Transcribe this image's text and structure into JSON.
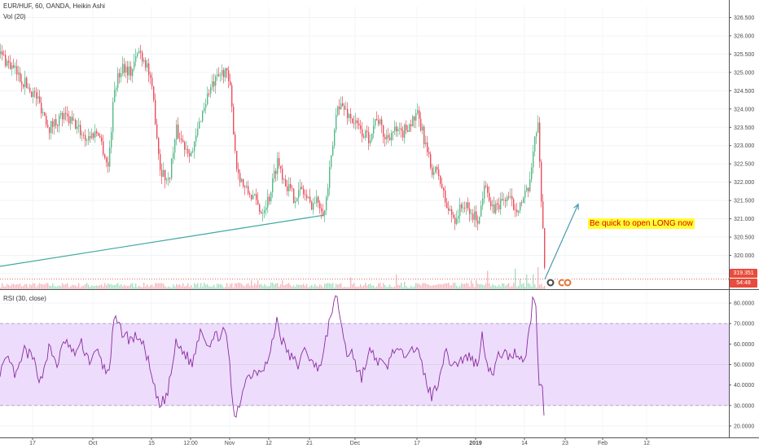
{
  "header": {
    "symbol_line": "EUR/HUF, 60, OANDA, Heikin Ashi",
    "volume_label": "Vol (20)",
    "rsi_label": "RSI (30, close)"
  },
  "annotation": {
    "text": "Be quick to open LONG now"
  },
  "price_badge": {
    "value": "319.351",
    "color": "#e74c3c"
  },
  "time_badge": {
    "value": "54:48",
    "color": "#e74c3c"
  },
  "chart_data": [
    {
      "type": "candlestick",
      "title": "",
      "ylim": [
        319.3,
        326.8
      ],
      "yticks": [
        319.5,
        320.0,
        320.5,
        321.0,
        321.5,
        322.0,
        322.5,
        323.0,
        323.5,
        324.0,
        324.5,
        325.0,
        325.5,
        326.0,
        326.5
      ],
      "ytick_labels": [
        "319.500",
        "320.000",
        "320.500",
        "321.000",
        "321.500",
        "322.000",
        "322.500",
        "323.000",
        "323.500",
        "324.000",
        "324.500",
        "325.000",
        "325.500",
        "326.000",
        "326.500"
      ],
      "xtick_labels": [
        "17",
        "Oct",
        "15",
        "12:00",
        "Nov",
        "12",
        "21",
        "Dec",
        "17",
        "2019",
        "14",
        "23",
        "Feb",
        "12"
      ],
      "up_color": "#53b987",
      "down_color": "#eb4d5c",
      "close_path": [
        [
          0,
          325.5
        ],
        [
          15,
          325.1
        ],
        [
          30,
          324.7
        ],
        [
          45,
          324.3
        ],
        [
          60,
          323.5
        ],
        [
          75,
          323.8
        ],
        [
          90,
          323.6
        ],
        [
          105,
          323.2
        ],
        [
          120,
          323.4
        ],
        [
          132,
          322.4
        ],
        [
          140,
          324.6
        ],
        [
          150,
          325.2
        ],
        [
          160,
          325.0
        ],
        [
          170,
          325.6
        ],
        [
          180,
          325.2
        ],
        [
          188,
          324.2
        ],
        [
          196,
          322.4
        ],
        [
          206,
          322.0
        ],
        [
          216,
          323.4
        ],
        [
          226,
          323.0
        ],
        [
          236,
          322.8
        ],
        [
          246,
          323.8
        ],
        [
          256,
          324.5
        ],
        [
          266,
          324.8
        ],
        [
          276,
          325.1
        ],
        [
          282,
          324.5
        ],
        [
          290,
          322.4
        ],
        [
          300,
          321.8
        ],
        [
          310,
          321.6
        ],
        [
          320,
          321.2
        ],
        [
          330,
          321.6
        ],
        [
          340,
          322.6
        ],
        [
          350,
          322.0
        ],
        [
          360,
          321.6
        ],
        [
          370,
          321.8
        ],
        [
          380,
          321.4
        ],
        [
          390,
          321.5
        ],
        [
          398,
          321.2
        ],
        [
          406,
          322.6
        ],
        [
          414,
          324.2
        ],
        [
          422,
          324.0
        ],
        [
          432,
          323.7
        ],
        [
          442,
          323.4
        ],
        [
          452,
          323.2
        ],
        [
          462,
          323.8
        ],
        [
          472,
          323.2
        ],
        [
          482,
          323.4
        ],
        [
          492,
          323.3
        ],
        [
          502,
          323.6
        ],
        [
          512,
          323.8
        ],
        [
          520,
          323.2
        ],
        [
          528,
          322.4
        ],
        [
          538,
          322.2
        ],
        [
          548,
          321.3
        ],
        [
          558,
          321.0
        ],
        [
          568,
          321.4
        ],
        [
          578,
          321.1
        ],
        [
          588,
          321.0
        ],
        [
          595,
          322.2
        ],
        [
          602,
          321.2
        ],
        [
          612,
          321.4
        ],
        [
          622,
          321.6
        ],
        [
          632,
          321.3
        ],
        [
          642,
          321.5
        ],
        [
          650,
          321.9
        ],
        [
          655,
          323.2
        ],
        [
          660,
          323.6
        ],
        [
          663,
          321.9
        ],
        [
          665,
          321.4
        ],
        [
          667,
          320.1
        ],
        [
          669,
          319.35
        ]
      ],
      "current_price": 319.351,
      "price_line_color": "#e74c3c",
      "trendline": {
        "from": [
          0,
          319.7
        ],
        "to": [
          398,
          321.1
        ],
        "color": "#3fa7a0"
      },
      "arrow": {
        "from": [
          669,
          319.35
        ],
        "to": [
          710,
          321.4
        ],
        "color": "#4a9ab0"
      }
    },
    {
      "type": "bar",
      "title": "",
      "name": "Volume",
      "volume_spikes": [
        [
          287,
          0.9
        ],
        [
          308,
          0.12
        ],
        [
          316,
          0.12
        ],
        [
          346,
          0.12
        ],
        [
          430,
          0.16
        ],
        [
          486,
          0.2
        ],
        [
          496,
          0.1
        ],
        [
          563,
          0.12
        ],
        [
          578,
          0.12
        ],
        [
          584,
          0.12
        ],
        [
          598,
          0.25
        ],
        [
          632,
          0.28
        ],
        [
          638,
          0.14
        ],
        [
          646,
          0.2
        ],
        [
          654,
          0.2
        ],
        [
          660,
          0.3
        ]
      ]
    },
    {
      "type": "line",
      "title": "",
      "name": "RSI (30, close)",
      "ylim": [
        16,
        86
      ],
      "yticks": [
        20,
        30,
        40,
        50,
        60,
        70,
        80
      ],
      "ytick_labels": [
        "20.0000",
        "30.0000",
        "40.0000",
        "50.0000",
        "60.0000",
        "70.0000",
        "80.0000"
      ],
      "upper_band": 70,
      "lower_band": 30,
      "band_color": "#eddcfc",
      "line_color": "#8a2c9e",
      "path": [
        [
          0,
          47
        ],
        [
          10,
          52
        ],
        [
          20,
          44
        ],
        [
          30,
          57
        ],
        [
          40,
          53
        ],
        [
          50,
          42
        ],
        [
          60,
          58
        ],
        [
          70,
          50
        ],
        [
          80,
          62
        ],
        [
          90,
          55
        ],
        [
          100,
          60
        ],
        [
          110,
          52
        ],
        [
          120,
          56
        ],
        [
          130,
          46
        ],
        [
          135,
          50
        ],
        [
          140,
          72
        ],
        [
          150,
          66
        ],
        [
          160,
          62
        ],
        [
          170,
          64
        ],
        [
          180,
          55
        ],
        [
          188,
          40
        ],
        [
          196,
          29
        ],
        [
          206,
          36
        ],
        [
          216,
          60
        ],
        [
          226,
          56
        ],
        [
          236,
          50
        ],
        [
          246,
          68
        ],
        [
          256,
          60
        ],
        [
          266,
          64
        ],
        [
          276,
          66
        ],
        [
          282,
          52
        ],
        [
          287,
          22
        ],
        [
          294,
          30
        ],
        [
          300,
          42
        ],
        [
          310,
          46
        ],
        [
          320,
          48
        ],
        [
          330,
          52
        ],
        [
          340,
          72
        ],
        [
          346,
          62
        ],
        [
          356,
          54
        ],
        [
          366,
          50
        ],
        [
          376,
          58
        ],
        [
          386,
          48
        ],
        [
          396,
          52
        ],
        [
          402,
          66
        ],
        [
          408,
          78
        ],
        [
          414,
          82
        ],
        [
          420,
          68
        ],
        [
          426,
          54
        ],
        [
          432,
          58
        ],
        [
          438,
          48
        ],
        [
          444,
          44
        ],
        [
          454,
          56
        ],
        [
          464,
          52
        ],
        [
          474,
          48
        ],
        [
          484,
          58
        ],
        [
          494,
          54
        ],
        [
          504,
          60
        ],
        [
          514,
          55
        ],
        [
          522,
          44
        ],
        [
          530,
          34
        ],
        [
          538,
          42
        ],
        [
          546,
          56
        ],
        [
          556,
          50
        ],
        [
          566,
          52
        ],
        [
          576,
          54
        ],
        [
          586,
          50
        ],
        [
          592,
          64
        ],
        [
          598,
          52
        ],
        [
          604,
          44
        ],
        [
          614,
          56
        ],
        [
          624,
          54
        ],
        [
          634,
          56
        ],
        [
          644,
          52
        ],
        [
          650,
          66
        ],
        [
          654,
          82
        ],
        [
          658,
          78
        ],
        [
          662,
          38
        ],
        [
          665,
          45
        ],
        [
          667,
          30
        ],
        [
          669,
          24
        ]
      ]
    }
  ]
}
